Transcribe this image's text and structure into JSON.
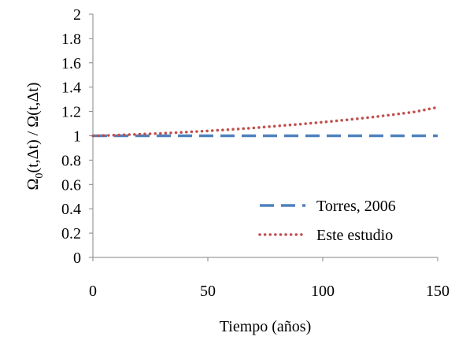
{
  "chart_data": {
    "type": "line",
    "xlabel": "Tiempo (años)",
    "ylabel": "Ω0(t,Δt) / Ω(t,Δt)",
    "ylabel_parts": {
      "pre": "Ω",
      "sub": "0",
      "post": "(t,Δt) / Ω(t,Δt)"
    },
    "xlim": [
      0,
      150
    ],
    "ylim": [
      0,
      2
    ],
    "x_ticks": [
      0,
      50,
      100,
      150
    ],
    "y_ticks": [
      0,
      0.2,
      0.4,
      0.6,
      0.8,
      1,
      1.2,
      1.4,
      1.6,
      1.8,
      2
    ],
    "x_tick_labels": [
      "0",
      "50",
      "100",
      "150"
    ],
    "y_tick_labels": [
      "0",
      "0.2",
      "0.4",
      "0.6",
      "0.8",
      "1",
      "1.2",
      "1.4",
      "1.6",
      "1.8",
      "2"
    ],
    "grid": false,
    "legend_position": "bottom-right",
    "series": [
      {
        "name": "Torres, 2006",
        "color": "#4F81BD",
        "style": "dashed",
        "x": [
          0,
          150
        ],
        "y": [
          1.0,
          1.0
        ]
      },
      {
        "name": "Este estudio",
        "color": "#C0504D",
        "style": "dotted",
        "x": [
          0,
          10,
          20,
          30,
          40,
          50,
          60,
          70,
          80,
          90,
          100,
          110,
          120,
          130,
          140,
          150
        ],
        "y": [
          1.0,
          1.005,
          1.012,
          1.02,
          1.03,
          1.04,
          1.052,
          1.065,
          1.08,
          1.095,
          1.112,
          1.13,
          1.15,
          1.172,
          1.197,
          1.235
        ]
      }
    ]
  }
}
